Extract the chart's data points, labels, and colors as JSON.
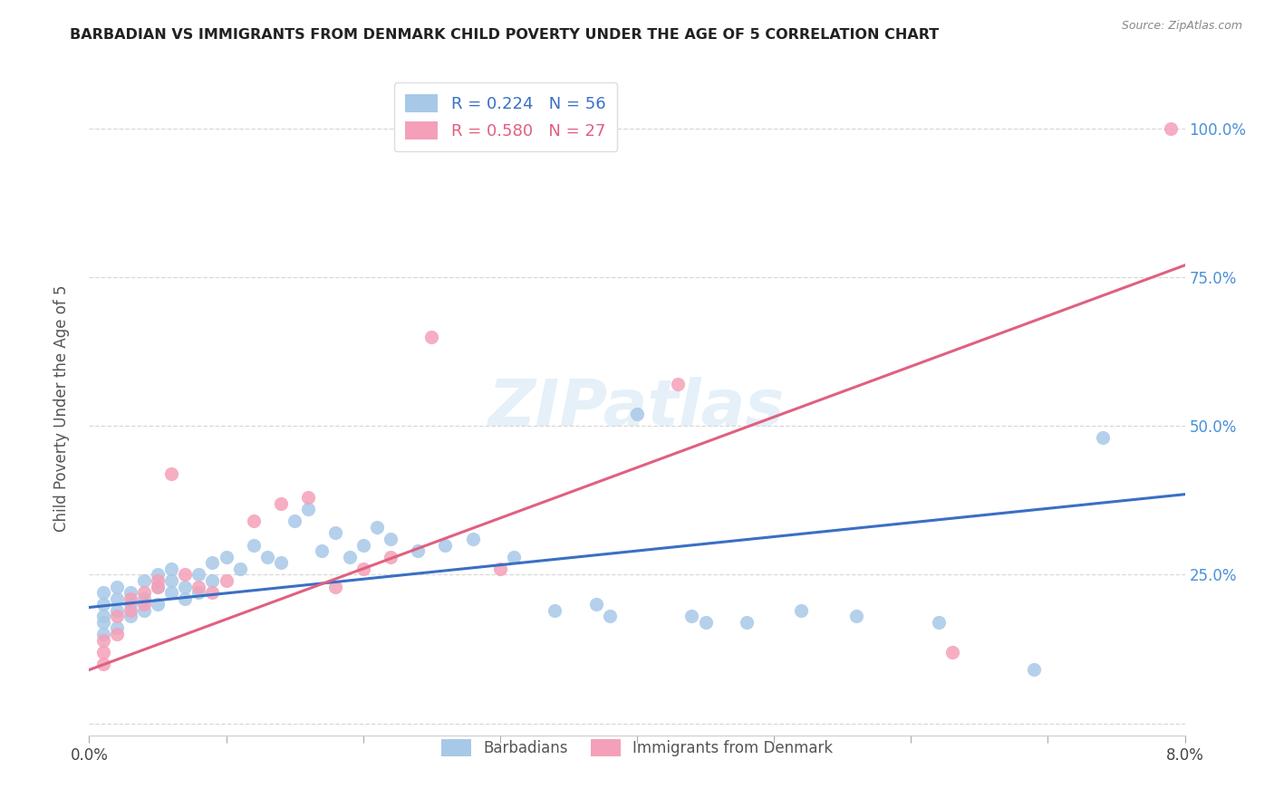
{
  "title": "BARBADIAN VS IMMIGRANTS FROM DENMARK CHILD POVERTY UNDER THE AGE OF 5 CORRELATION CHART",
  "source": "Source: ZipAtlas.com",
  "ylabel": "Child Poverty Under the Age of 5",
  "legend_label_blue": "Barbadians",
  "legend_label_pink": "Immigrants from Denmark",
  "R_blue": 0.224,
  "N_blue": 56,
  "R_pink": 0.58,
  "N_pink": 27,
  "xlim": [
    0.0,
    0.08
  ],
  "ylim": [
    -0.02,
    1.08
  ],
  "yticks": [
    0.0,
    0.25,
    0.5,
    0.75,
    1.0
  ],
  "ytick_labels": [
    "",
    "25.0%",
    "50.0%",
    "75.0%",
    "100.0%"
  ],
  "blue_color": "#a8c8e8",
  "pink_color": "#f4a0b8",
  "blue_line_color": "#3a6fc4",
  "pink_line_color": "#e06080",
  "watermark": "ZIPatlas",
  "blue_line_x0": 0.0,
  "blue_line_y0": 0.195,
  "blue_line_x1": 0.08,
  "blue_line_y1": 0.385,
  "pink_line_x0": 0.0,
  "pink_line_y0": 0.09,
  "pink_line_x1": 0.08,
  "pink_line_y1": 0.77,
  "blue_x": [
    0.001,
    0.001,
    0.001,
    0.001,
    0.001,
    0.002,
    0.002,
    0.002,
    0.002,
    0.003,
    0.003,
    0.003,
    0.004,
    0.004,
    0.004,
    0.005,
    0.005,
    0.005,
    0.006,
    0.006,
    0.006,
    0.007,
    0.007,
    0.008,
    0.008,
    0.009,
    0.009,
    0.01,
    0.011,
    0.012,
    0.013,
    0.014,
    0.015,
    0.016,
    0.017,
    0.018,
    0.019,
    0.02,
    0.021,
    0.022,
    0.024,
    0.026,
    0.028,
    0.031,
    0.034,
    0.037,
    0.04,
    0.044,
    0.048,
    0.052,
    0.056,
    0.062,
    0.069,
    0.074,
    0.038,
    0.045
  ],
  "blue_y": [
    0.22,
    0.2,
    0.18,
    0.15,
    0.17,
    0.21,
    0.19,
    0.23,
    0.16,
    0.22,
    0.2,
    0.18,
    0.24,
    0.21,
    0.19,
    0.23,
    0.25,
    0.2,
    0.22,
    0.24,
    0.26,
    0.21,
    0.23,
    0.25,
    0.22,
    0.27,
    0.24,
    0.28,
    0.26,
    0.3,
    0.28,
    0.27,
    0.34,
    0.36,
    0.29,
    0.32,
    0.28,
    0.3,
    0.33,
    0.31,
    0.29,
    0.3,
    0.31,
    0.28,
    0.19,
    0.2,
    0.52,
    0.18,
    0.17,
    0.19,
    0.18,
    0.17,
    0.09,
    0.48,
    0.18,
    0.17
  ],
  "pink_x": [
    0.001,
    0.001,
    0.001,
    0.002,
    0.002,
    0.003,
    0.003,
    0.004,
    0.004,
    0.005,
    0.005,
    0.006,
    0.007,
    0.008,
    0.009,
    0.01,
    0.012,
    0.014,
    0.016,
    0.018,
    0.02,
    0.022,
    0.025,
    0.03,
    0.043,
    0.063,
    0.079
  ],
  "pink_y": [
    0.14,
    0.12,
    0.1,
    0.18,
    0.15,
    0.21,
    0.19,
    0.22,
    0.2,
    0.23,
    0.24,
    0.42,
    0.25,
    0.23,
    0.22,
    0.24,
    0.34,
    0.37,
    0.38,
    0.23,
    0.26,
    0.28,
    0.65,
    0.26,
    0.57,
    0.12,
    1.0
  ]
}
